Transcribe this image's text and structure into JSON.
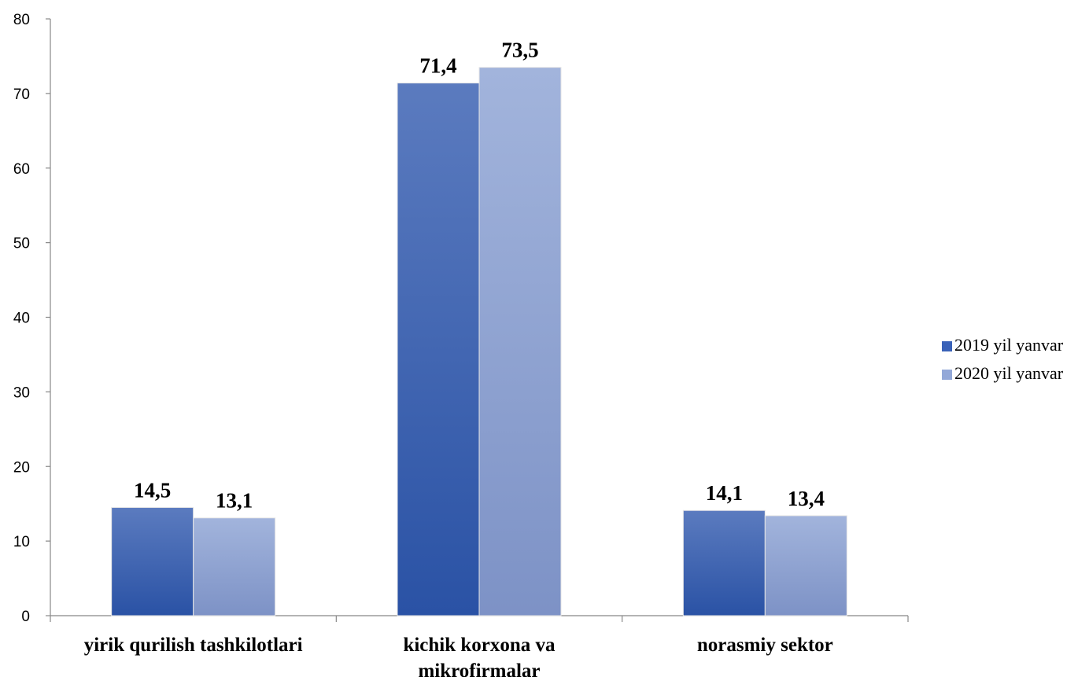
{
  "chart_data": {
    "type": "bar",
    "categories": [
      [
        "yirik qurilish tashkilotlari"
      ],
      [
        "kichik korxona va",
        "mikrofirmalar"
      ],
      [
        "norasmiy sektor"
      ]
    ],
    "series": [
      {
        "name": "2019 yil yanvar",
        "values": [
          14.5,
          71.4,
          14.1
        ],
        "labels": [
          "14,5",
          "71,4",
          "14,1"
        ],
        "color": "#3a62b8"
      },
      {
        "name": "2020 yil yanvar",
        "values": [
          13.1,
          73.5,
          13.4
        ],
        "labels": [
          "13,1",
          "73,5",
          "13,4"
        ],
        "color": "#93a8d8"
      }
    ],
    "yticks": [
      "0",
      "10",
      "20",
      "30",
      "40",
      "50",
      "60",
      "70",
      "80"
    ],
    "ylim": [
      0,
      80
    ],
    "title": "",
    "xlabel": "",
    "ylabel": "",
    "grid": false,
    "legend_position": "right"
  }
}
